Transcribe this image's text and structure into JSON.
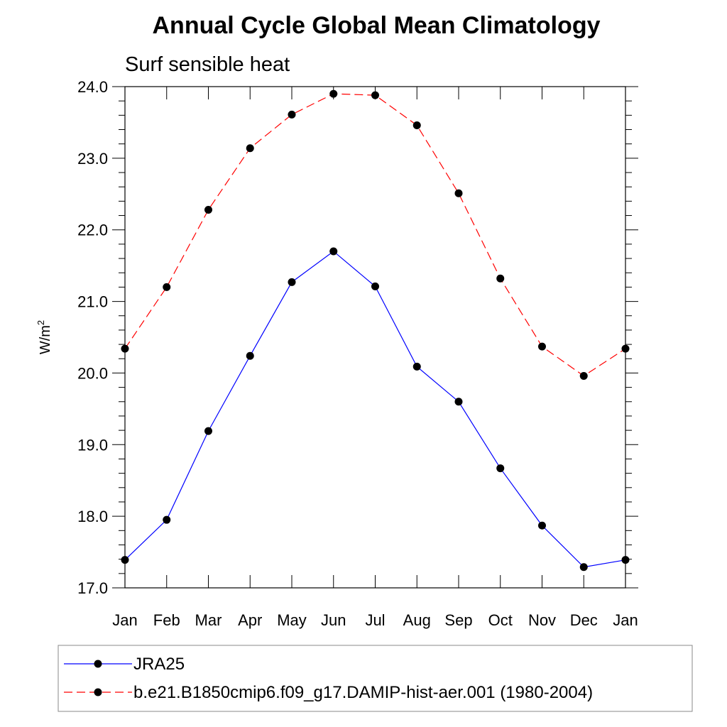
{
  "chart_data": {
    "type": "line",
    "title": "Annual Cycle Global Mean Climatology",
    "subtitle": "Surf sensible heat",
    "ylabel": "W/m",
    "ylabel_sup": "2",
    "xlabel": "",
    "categories": [
      "Jan",
      "Feb",
      "Mar",
      "Apr",
      "May",
      "Jun",
      "Jul",
      "Aug",
      "Sep",
      "Oct",
      "Nov",
      "Dec",
      "Jan"
    ],
    "ylim": [
      17.0,
      24.0
    ],
    "yticks": [
      "17.0",
      "18.0",
      "19.0",
      "20.0",
      "21.0",
      "22.0",
      "23.0",
      "24.0"
    ],
    "grid": false,
    "legend_position": "bottom",
    "series": [
      {
        "name": "JRA25",
        "color": "#0000ff",
        "dash": "solid",
        "values": [
          17.39,
          17.95,
          19.19,
          20.24,
          21.27,
          21.7,
          21.21,
          20.09,
          19.6,
          18.67,
          17.87,
          17.29,
          17.39
        ]
      },
      {
        "name": "b.e21.B1850cmip6.f09_g17.DAMIP-hist-aer.001 (1980-2004)",
        "color": "#ff0000",
        "dash": "dashed",
        "values": [
          20.34,
          21.2,
          22.28,
          23.14,
          23.61,
          23.9,
          23.88,
          23.46,
          22.51,
          21.32,
          20.37,
          19.96,
          20.34
        ]
      }
    ]
  }
}
